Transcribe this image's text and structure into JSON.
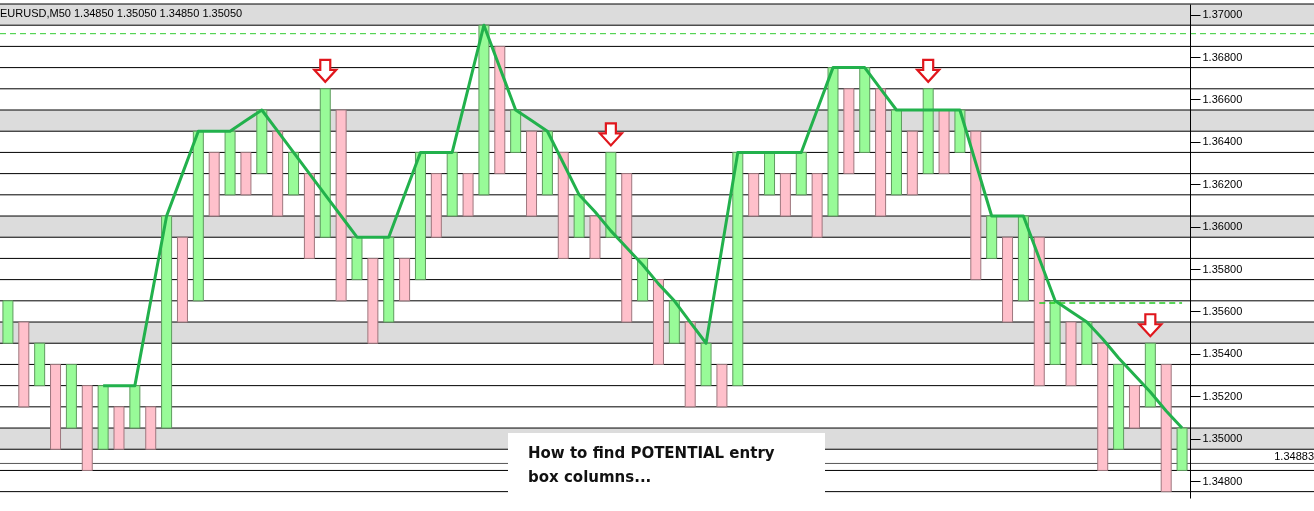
{
  "chart_data": {
    "type": "bar",
    "title": "EURUSD,M50  1.34850 1.35050 1.34850 1.35050",
    "annotations": [
      "How to find POTENTIAL entry box columns..."
    ],
    "categories": [
      null,
      null,
      null,
      null,
      null,
      null,
      null,
      null,
      null,
      null,
      null,
      null,
      null,
      null,
      null,
      null,
      null,
      null,
      null,
      null,
      null,
      null,
      null,
      null,
      null,
      null,
      null,
      null,
      null,
      null,
      null,
      null,
      null,
      null,
      null,
      null,
      null,
      null,
      null,
      null,
      null,
      null,
      null,
      null,
      null,
      null,
      null,
      null,
      null,
      null,
      null,
      null,
      null,
      null,
      null,
      null,
      null,
      null,
      null,
      null,
      null,
      null,
      null,
      null,
      null,
      null,
      null,
      null,
      null,
      null,
      null,
      null,
      null,
      null,
      null
    ],
    "ylim": [
      1.3472,
      1.3705
    ],
    "yticks": [
      {
        "value": 1.348,
        "label": "1.34800"
      },
      {
        "value": 1.35,
        "label": "1.35000"
      },
      {
        "value": 1.352,
        "label": "1.35200"
      },
      {
        "value": 1.354,
        "label": "1.35400"
      },
      {
        "value": 1.356,
        "label": "1.35600"
      },
      {
        "value": 1.358,
        "label": "1.35800"
      },
      {
        "value": 1.36,
        "label": "1.36000"
      },
      {
        "value": 1.362,
        "label": "1.36200"
      },
      {
        "value": 1.364,
        "label": "1.36400"
      },
      {
        "value": 1.366,
        "label": "1.36600"
      },
      {
        "value": 1.368,
        "label": "1.36800"
      },
      {
        "value": 1.37,
        "label": "1.37000"
      }
    ],
    "tick_labels": "y",
    "series": [
      {
        "base": [
          1.3545,
          1.3555,
          1.3525,
          1.3535,
          1.3505,
          1.3525,
          1.3495,
          1.3515,
          1.3505,
          1.3515,
          1.3505,
          1.3595,
          1.3565,
          1.3635,
          1.3615,
          1.3635,
          1.3625,
          1.3645,
          1.3615,
          1.3625,
          1.3595,
          1.3655,
          1.3575,
          1.3585,
          1.3555,
          1.3585,
          1.3575,
          1.3625,
          1.3605,
          1.3625,
          1.3615,
          1.3685,
          1.3635,
          1.3645,
          1.3615,
          1.3635,
          1.3595,
          1.3605,
          1.3595,
          1.3625,
          1.3565,
          1.3575,
          1.3545,
          1.3555,
          1.3525,
          1.3535,
          1.3525,
          1.3625,
          1.3615,
          1.3625,
          1.3615,
          1.3625,
          1.3605,
          1.3665,
          1.3635,
          1.3665,
          1.3615,
          1.3645,
          1.3625,
          1.3655,
          1.3635,
          1.3645,
          1.3585,
          1.3595,
          1.3565,
          1.3595,
          1.3535,
          1.3555,
          1.3535,
          1.3545,
          1.3495,
          1.3525,
          1.3515,
          1.3535,
          1.3485
        ],
        "values": [
          0.002,
          -0.004,
          0.002,
          -0.004,
          0.003,
          -0.004,
          0.003,
          -0.002,
          0.002,
          -0.002,
          0.01,
          -0.004,
          0.008,
          -0.003,
          0.003,
          -0.002,
          0.003,
          -0.004,
          0.002,
          -0.004,
          0.007,
          -0.009,
          0.002,
          -0.004,
          0.004,
          -0.002,
          0.006,
          -0.003,
          0.003,
          -0.002,
          0.008,
          -0.006,
          0.002,
          -0.004,
          0.003,
          -0.005,
          0.002,
          -0.002,
          0.004,
          -0.007,
          0.002,
          -0.004,
          0.002,
          -0.004,
          0.002,
          -0.002,
          0.011,
          -0.002,
          0.002,
          -0.002,
          0.002,
          -0.003,
          0.007,
          -0.004,
          0.004,
          -0.006,
          0.004,
          -0.003,
          0.004,
          -0.003,
          0.002,
          -0.007,
          0.002,
          -0.004,
          0.004,
          -0.007,
          0.003,
          -0.003,
          0.002,
          -0.006,
          0.004,
          -0.002,
          0.003,
          -0.006,
          0.002
        ],
        "colors": [
          "#98fb98",
          "#ffc0cb",
          "#98fb98",
          "#ffc0cb",
          "#98fb98",
          "#ffc0cb",
          "#98fb98",
          "#ffc0cb",
          "#98fb98",
          "#ffc0cb",
          "#98fb98",
          "#ffc0cb",
          "#98fb98",
          "#ffc0cb",
          "#98fb98",
          "#ffc0cb",
          "#98fb98",
          "#ffc0cb",
          "#98fb98",
          "#ffc0cb",
          "#98fb98",
          "#ffc0cb",
          "#98fb98",
          "#ffc0cb",
          "#98fb98",
          "#ffc0cb",
          "#98fb98",
          "#ffc0cb",
          "#98fb98",
          "#ffc0cb",
          "#98fb98",
          "#ffc0cb",
          "#98fb98",
          "#ffc0cb",
          "#98fb98",
          "#ffc0cb",
          "#98fb98",
          "#ffc0cb",
          "#98fb98",
          "#ffc0cb",
          "#98fb98",
          "#ffc0cb",
          "#98fb98",
          "#ffc0cb",
          "#98fb98",
          "#ffc0cb",
          "#98fb98",
          "#ffc0cb",
          "#98fb98",
          "#ffc0cb",
          "#98fb98",
          "#ffc0cb",
          "#98fb98",
          "#ffc0cb",
          "#98fb98",
          "#ffc0cb",
          "#98fb98",
          "#ffc0cb",
          "#98fb98",
          "#ffc0cb",
          "#98fb98",
          "#ffc0cb",
          "#98fb98",
          "#ffc0cb",
          "#98fb98",
          "#ffc0cb",
          "#98fb98",
          "#ffc0cb",
          "#98fb98",
          "#ffc0cb",
          "#98fb98",
          "#ffc0cb",
          "#98fb98",
          "#ffc0cb",
          "#98fb98"
        ]
      },
      {
        "type": "line",
        "color": "#22b14c",
        "values": [
          null,
          null,
          null,
          null,
          null,
          null,
          1.3525,
          1.3525,
          1.3525,
          1.3565,
          1.3605,
          1.3625,
          1.3645,
          1.3645,
          1.3645,
          1.365,
          1.3655,
          1.3645,
          1.3635,
          1.3625,
          1.3615,
          1.3605,
          1.3595,
          1.3595,
          1.3595,
          1.3615,
          1.3635,
          1.3635,
          1.3635,
          1.3665,
          1.3695,
          1.3675,
          1.3655,
          1.365,
          1.3645,
          1.363,
          1.3615,
          1.3607,
          1.3598,
          1.359,
          1.3582,
          1.3573,
          1.3565,
          1.3555,
          1.3545,
          1.359,
          1.3635,
          1.3635,
          1.3635,
          1.3635,
          1.3635,
          1.3655,
          1.3675,
          1.3675,
          1.3675,
          1.3665,
          1.3655,
          1.3655,
          1.3655,
          1.3655,
          1.3655,
          1.363,
          1.3605,
          1.3605,
          1.3605,
          1.3585,
          1.3565,
          1.356,
          1.3555,
          1.3547,
          1.3538,
          1.353,
          1.3522,
          1.3513,
          1.3505
        ]
      },
      {
        "type": "line",
        "color": "#22cc22",
        "line_style": "dashed",
        "values": [
          null,
          null,
          null,
          null,
          null,
          null,
          null,
          null,
          null,
          null,
          null,
          null,
          null,
          null,
          null,
          null,
          null,
          null,
          null,
          null,
          null,
          null,
          null,
          null,
          null,
          null,
          null,
          null,
          null,
          null,
          null,
          null,
          null,
          null,
          null,
          null,
          null,
          null,
          null,
          null,
          null,
          null,
          null,
          null,
          null,
          null,
          null,
          null,
          null,
          null,
          null,
          null,
          null,
          null,
          null,
          null,
          null,
          null,
          null,
          null,
          null,
          null,
          null,
          null,
          null,
          1.3564,
          1.3564,
          1.3564,
          1.3564,
          1.3564,
          1.3564,
          1.3564,
          1.3564,
          1.3564,
          1.3564
        ]
      }
    ],
    "bands": [
      {
        "axis": "y",
        "from": 1.3695,
        "to": 1.3705,
        "color": "#dcdcdc"
      },
      {
        "axis": "y",
        "from": 1.3645,
        "to": 1.3655,
        "color": "#dcdcdc"
      },
      {
        "axis": "y",
        "from": 1.3595,
        "to": 1.3605,
        "color": "#dcdcdc"
      },
      {
        "axis": "y",
        "from": 1.3545,
        "to": 1.3555,
        "color": "#dcdcdc"
      },
      {
        "axis": "y",
        "from": 1.3495,
        "to": 1.3505,
        "color": "#dcdcdc"
      }
    ],
    "ref_lines": [
      {
        "axis": "y",
        "value": 1.3475,
        "color": "#000000"
      },
      {
        "axis": "y",
        "value": 1.3485,
        "color": "#000000"
      },
      {
        "axis": "y",
        "value": 1.3495,
        "color": "#000000"
      },
      {
        "axis": "y",
        "value": 1.3505,
        "color": "#000000"
      },
      {
        "axis": "y",
        "value": 1.3515,
        "color": "#000000"
      },
      {
        "axis": "y",
        "value": 1.3525,
        "color": "#000000"
      },
      {
        "axis": "y",
        "value": 1.3535,
        "color": "#000000"
      },
      {
        "axis": "y",
        "value": 1.3545,
        "color": "#000000"
      },
      {
        "axis": "y",
        "value": 1.3555,
        "color": "#000000"
      },
      {
        "axis": "y",
        "value": 1.3565,
        "color": "#000000"
      },
      {
        "axis": "y",
        "value": 1.3575,
        "color": "#000000"
      },
      {
        "axis": "y",
        "value": 1.3585,
        "color": "#000000"
      },
      {
        "axis": "y",
        "value": 1.3595,
        "color": "#000000"
      },
      {
        "axis": "y",
        "value": 1.3605,
        "color": "#000000"
      },
      {
        "axis": "y",
        "value": 1.3615,
        "color": "#000000"
      },
      {
        "axis": "y",
        "value": 1.3625,
        "color": "#000000"
      },
      {
        "axis": "y",
        "value": 1.3635,
        "color": "#000000"
      },
      {
        "axis": "y",
        "value": 1.3645,
        "color": "#000000"
      },
      {
        "axis": "y",
        "value": 1.3655,
        "color": "#000000"
      },
      {
        "axis": "y",
        "value": 1.3665,
        "color": "#000000"
      },
      {
        "axis": "y",
        "value": 1.3675,
        "color": "#000000"
      },
      {
        "axis": "y",
        "value": 1.3685,
        "color": "#000000"
      },
      {
        "axis": "y",
        "value": 1.3695,
        "color": "#000000"
      },
      {
        "axis": "y",
        "value": 1.3705,
        "color": "#000000"
      },
      {
        "axis": "y",
        "value": 1.3691,
        "color": "#33cc33",
        "line_style": "dashed"
      },
      {
        "axis": "y",
        "value": 1.34883,
        "label": "1.34883",
        "color": "#555555"
      }
    ]
  }
}
